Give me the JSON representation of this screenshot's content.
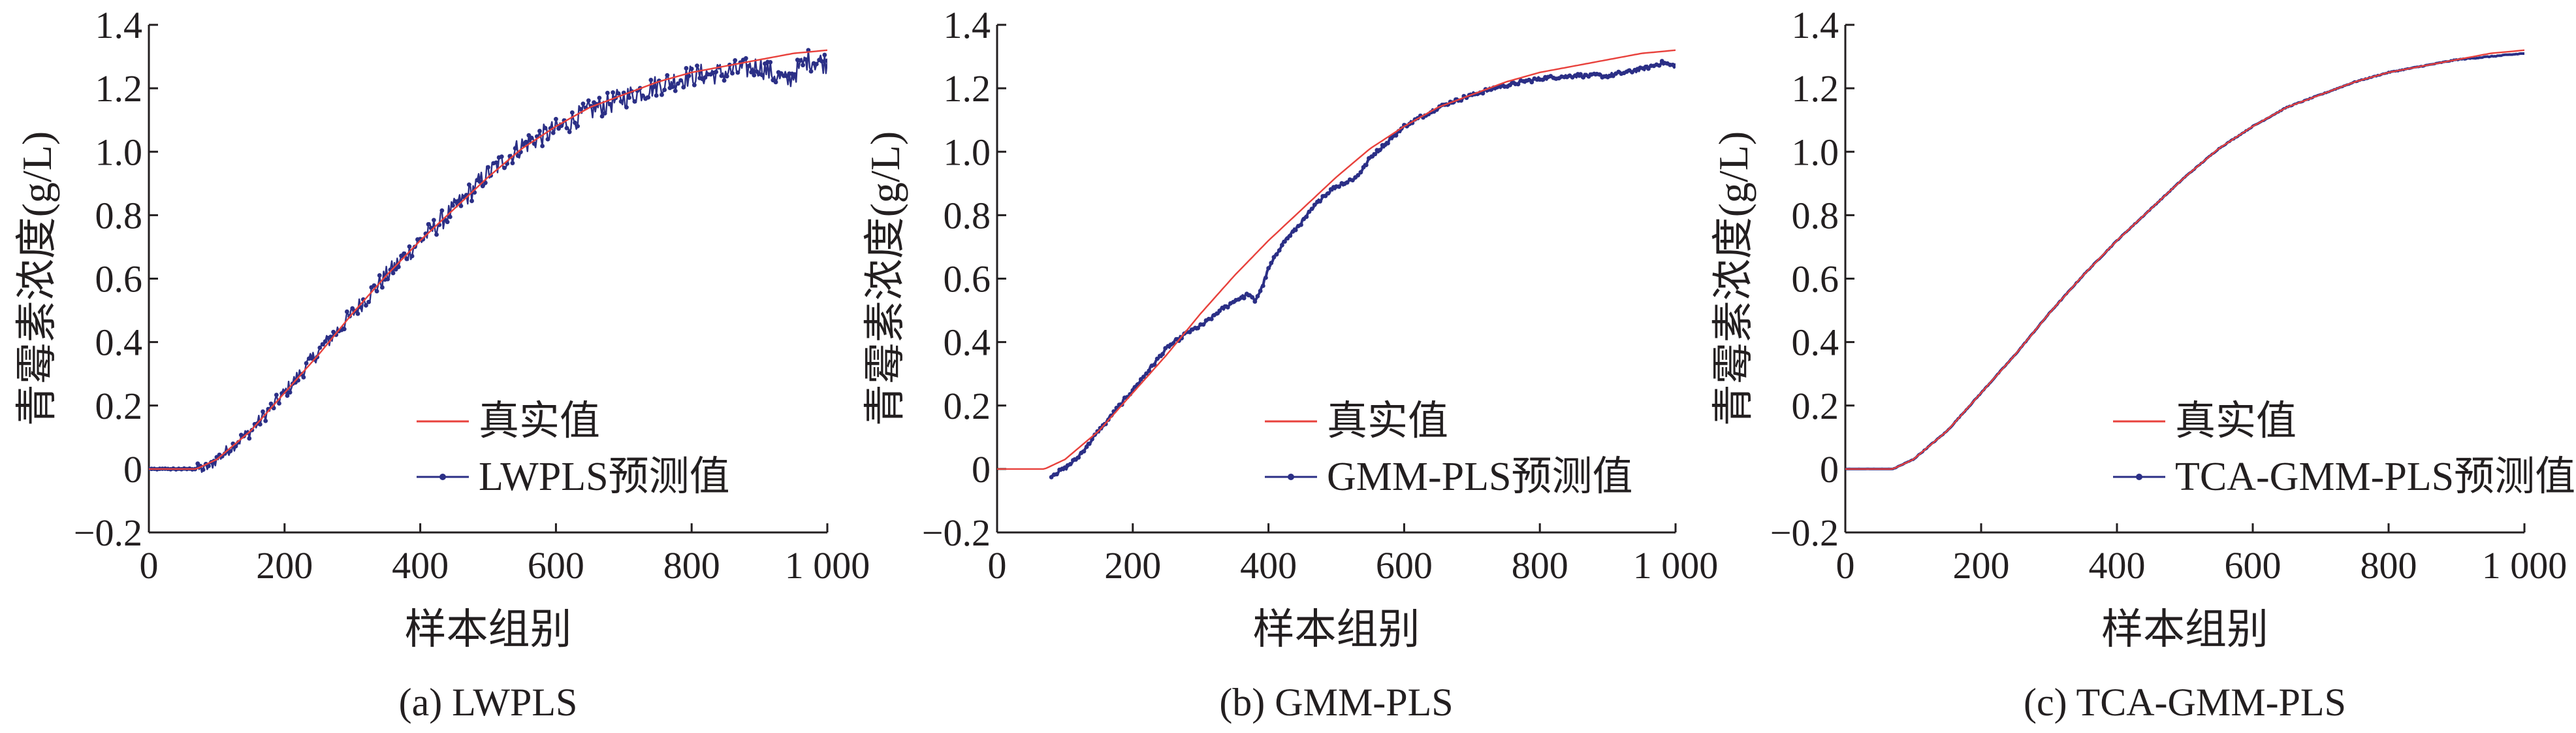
{
  "chart_data": [
    {
      "type": "line",
      "caption": "(a) LWPLS",
      "xlabel": "样本组别",
      "ylabel": "青霉素浓度(g/L)",
      "xlim": [
        0,
        1000
      ],
      "ylim": [
        -0.2,
        1.4
      ],
      "xticks": [
        0,
        200,
        400,
        600,
        800,
        1000
      ],
      "xtick_labels": [
        "0",
        "200",
        "400",
        "600",
        "800",
        "1 000"
      ],
      "yticks": [
        -0.2,
        0,
        0.2,
        0.4,
        0.6,
        0.8,
        1.0,
        1.2,
        1.4
      ],
      "ytick_labels": [
        "−0.2",
        "0",
        "0.2",
        "0.4",
        "0.6",
        "0.8",
        "1.0",
        "1.2",
        "1.4"
      ],
      "grid": false,
      "legend_position": "lower-right",
      "series": [
        {
          "name": "真实值",
          "color": "#e8413c",
          "marker": "none",
          "x": [
            0,
            50,
            70,
            100,
            150,
            200,
            250,
            300,
            350,
            400,
            450,
            500,
            550,
            600,
            650,
            700,
            750,
            800,
            850,
            900,
            950,
            1000
          ],
          "values": [
            0.0,
            0.0,
            0.0,
            0.03,
            0.12,
            0.24,
            0.36,
            0.49,
            0.61,
            0.72,
            0.82,
            0.92,
            1.01,
            1.08,
            1.14,
            1.18,
            1.22,
            1.25,
            1.27,
            1.29,
            1.31,
            1.32
          ]
        },
        {
          "name": "LWPLS预测值",
          "color": "#2b2f86",
          "marker": "dot",
          "x": [
            0,
            50,
            70,
            80,
            90,
            100,
            150,
            200,
            250,
            300,
            350,
            400,
            450,
            500,
            550,
            600,
            650,
            700,
            750,
            800,
            850,
            900,
            940,
            970,
            1000
          ],
          "values": [
            0.0,
            0.0,
            0.0,
            0.0,
            0.01,
            0.03,
            0.12,
            0.24,
            0.37,
            0.49,
            0.61,
            0.72,
            0.82,
            0.93,
            1.02,
            1.07,
            1.13,
            1.17,
            1.21,
            1.24,
            1.25,
            1.27,
            1.22,
            1.29,
            1.28
          ]
        }
      ]
    },
    {
      "type": "line",
      "caption": "(b) GMM-PLS",
      "xlabel": "样本组别",
      "ylabel": "青霉素浓度(g/L)",
      "xlim": [
        0,
        1000
      ],
      "ylim": [
        -0.2,
        1.4
      ],
      "xticks": [
        0,
        200,
        400,
        600,
        800,
        1000
      ],
      "xtick_labels": [
        "0",
        "200",
        "400",
        "600",
        "800",
        "1 000"
      ],
      "yticks": [
        -0.2,
        0,
        0.2,
        0.4,
        0.6,
        0.8,
        1.0,
        1.2,
        1.4
      ],
      "ytick_labels": [
        "−0.2",
        "0",
        "0.2",
        "0.4",
        "0.6",
        "0.8",
        "1.0",
        "1.2",
        "1.4"
      ],
      "grid": false,
      "legend_position": "lower-right",
      "series": [
        {
          "name": "真实值",
          "color": "#e8413c",
          "marker": "none",
          "x": [
            0,
            50,
            70,
            100,
            150,
            200,
            250,
            300,
            350,
            400,
            450,
            500,
            550,
            600,
            650,
            700,
            750,
            800,
            850,
            900,
            950,
            1000
          ],
          "values": [
            0.0,
            0.0,
            0.0,
            0.03,
            0.12,
            0.24,
            0.36,
            0.49,
            0.61,
            0.72,
            0.82,
            0.92,
            1.01,
            1.08,
            1.14,
            1.18,
            1.22,
            1.25,
            1.27,
            1.29,
            1.31,
            1.32
          ]
        },
        {
          "name": "GMM-PLS预测值",
          "color": "#2b2f86",
          "marker": "dot",
          "x": [
            80,
            90,
            100,
            120,
            150,
            200,
            250,
            280,
            300,
            330,
            350,
            370,
            380,
            390,
            400,
            420,
            450,
            480,
            500,
            530,
            550,
            600,
            650,
            700,
            750,
            800,
            850,
            900,
            950,
            980,
            1000
          ],
          "values": [
            -0.02,
            -0.01,
            0.0,
            0.04,
            0.12,
            0.25,
            0.38,
            0.43,
            0.45,
            0.5,
            0.53,
            0.55,
            0.53,
            0.57,
            0.63,
            0.71,
            0.78,
            0.86,
            0.89,
            0.92,
            0.98,
            1.08,
            1.14,
            1.18,
            1.21,
            1.23,
            1.24,
            1.24,
            1.26,
            1.28,
            1.27
          ]
        }
      ]
    },
    {
      "type": "line",
      "caption": "(c) TCA-GMM-PLS",
      "xlabel": "样本组别",
      "ylabel": "青霉素浓度(g/L)",
      "xlim": [
        0,
        1000
      ],
      "ylim": [
        -0.2,
        1.4
      ],
      "xticks": [
        0,
        200,
        400,
        600,
        800,
        1000
      ],
      "xtick_labels": [
        "0",
        "200",
        "400",
        "600",
        "800",
        "1 000"
      ],
      "yticks": [
        -0.2,
        0,
        0.2,
        0.4,
        0.6,
        0.8,
        1.0,
        1.2,
        1.4
      ],
      "ytick_labels": [
        "−0.2",
        "0",
        "0.2",
        "0.4",
        "0.6",
        "0.8",
        "1.0",
        "1.2",
        "1.4"
      ],
      "grid": false,
      "legend_position": "lower-right",
      "series": [
        {
          "name": "真实值",
          "color": "#e8413c",
          "marker": "none",
          "x": [
            0,
            50,
            70,
            100,
            150,
            200,
            250,
            300,
            350,
            400,
            450,
            500,
            550,
            600,
            650,
            700,
            750,
            800,
            850,
            900,
            950,
            1000
          ],
          "values": [
            0.0,
            0.0,
            0.0,
            0.03,
            0.12,
            0.24,
            0.36,
            0.49,
            0.61,
            0.72,
            0.82,
            0.92,
            1.01,
            1.08,
            1.14,
            1.18,
            1.22,
            1.25,
            1.27,
            1.29,
            1.31,
            1.32
          ]
        },
        {
          "name": "TCA-GMM-PLS预测值",
          "color": "#2b2f86",
          "marker": "dot",
          "x": [
            0,
            50,
            70,
            100,
            150,
            200,
            250,
            300,
            350,
            400,
            450,
            500,
            550,
            600,
            650,
            700,
            750,
            800,
            850,
            900,
            950,
            1000
          ],
          "values": [
            0.0,
            0.0,
            0.0,
            0.03,
            0.12,
            0.24,
            0.36,
            0.49,
            0.61,
            0.72,
            0.82,
            0.92,
            1.01,
            1.08,
            1.14,
            1.18,
            1.22,
            1.25,
            1.27,
            1.29,
            1.3,
            1.31
          ]
        }
      ]
    }
  ]
}
